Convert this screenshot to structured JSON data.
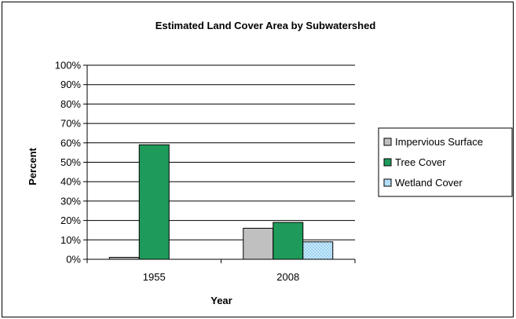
{
  "chart_data": {
    "type": "bar",
    "title": "Estimated Land Cover Area by Subwatershed",
    "xlabel": "Year",
    "ylabel": "Percent",
    "categories": [
      "1955",
      "2008"
    ],
    "series": [
      {
        "name": "Impervious Surface",
        "values": [
          1,
          16
        ],
        "color": "#c0c0c0"
      },
      {
        "name": "Tree Cover",
        "values": [
          59,
          19
        ],
        "color": "#1e9b5a"
      },
      {
        "name": "Wetland Cover",
        "values": [
          0,
          9
        ],
        "color": "#aad8f2"
      }
    ],
    "ylim": [
      0,
      100
    ],
    "yticks": [
      "0%",
      "10%",
      "20%",
      "30%",
      "40%",
      "50%",
      "60%",
      "70%",
      "80%",
      "90%",
      "100%"
    ],
    "grid": true,
    "legend_position": "right"
  }
}
